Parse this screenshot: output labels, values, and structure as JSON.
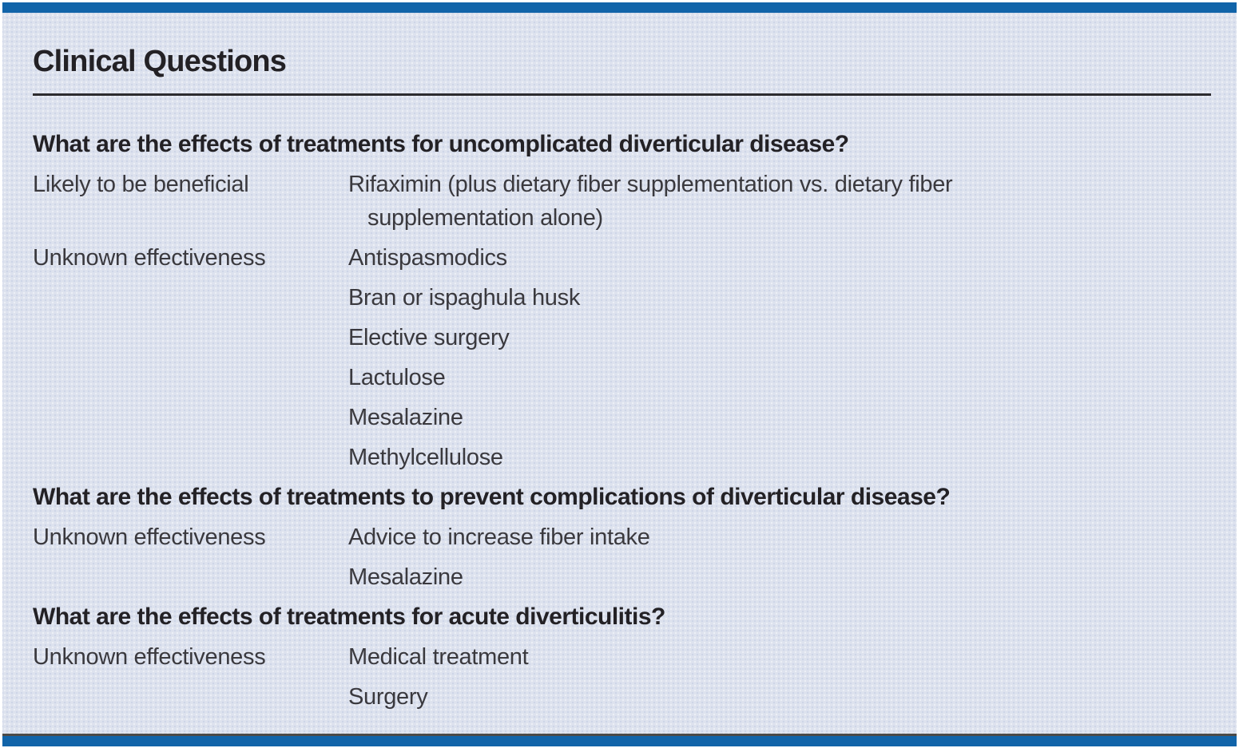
{
  "panel": {
    "title": "Clinical Questions"
  },
  "colors": {
    "accent_bar_blue": "#1164a9",
    "panel_background": "#dde2ee",
    "frame_white": "#ffffff",
    "heading_text": "#232125",
    "body_text": "#3a393e",
    "divider": "#2c2b2f"
  },
  "sections": [
    {
      "question": "What are the effects of treatments for uncomplicated diverticular disease?",
      "rows": [
        {
          "category": "Likely to be beneficial",
          "treatments": [
            "Rifaximin (plus dietary fiber supplementation vs. dietary fiber supplementation alone)"
          ]
        },
        {
          "category": "Unknown effectiveness",
          "treatments": [
            "Antispasmodics",
            "Bran or ispaghula husk",
            "Elective surgery",
            "Lactulose",
            "Mesalazine",
            "Methylcellulose"
          ]
        }
      ]
    },
    {
      "question": "What are the effects of treatments to prevent complications of diverticular disease?",
      "rows": [
        {
          "category": "Unknown effectiveness",
          "treatments": [
            "Advice to increase fiber intake",
            "Mesalazine"
          ]
        }
      ]
    },
    {
      "question": "What are the effects of treatments for acute diverticulitis?",
      "rows": [
        {
          "category": "Unknown effectiveness",
          "treatments": [
            "Medical treatment",
            "Surgery"
          ]
        }
      ]
    }
  ]
}
